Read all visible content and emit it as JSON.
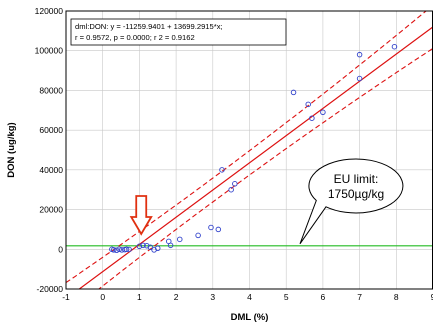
{
  "chart_data": {
    "type": "scatter",
    "xlabel": "DML (%)",
    "ylabel": "DON (ug/kg)",
    "xlim": [
      -1,
      9
    ],
    "ylim": [
      -20000,
      120000
    ],
    "x_ticks": [
      -1,
      0,
      1,
      2,
      3,
      4,
      5,
      6,
      7,
      8,
      9
    ],
    "y_ticks": [
      -20000,
      0,
      20000,
      40000,
      60000,
      80000,
      100000,
      120000
    ],
    "grid": true,
    "points": [
      {
        "x": 0.25,
        "y": 0
      },
      {
        "x": 0.3,
        "y": -300
      },
      {
        "x": 0.38,
        "y": -500
      },
      {
        "x": 0.45,
        "y": 0
      },
      {
        "x": 0.52,
        "y": -300
      },
      {
        "x": 0.6,
        "y": -200
      },
      {
        "x": 0.65,
        "y": 0
      },
      {
        "x": 0.72,
        "y": -100
      },
      {
        "x": 1.0,
        "y": 1500
      },
      {
        "x": 1.1,
        "y": 2000
      },
      {
        "x": 1.2,
        "y": 1800
      },
      {
        "x": 1.3,
        "y": 1000
      },
      {
        "x": 1.4,
        "y": -300
      },
      {
        "x": 1.5,
        "y": 500
      },
      {
        "x": 1.85,
        "y": 2000
      },
      {
        "x": 1.8,
        "y": 4000
      },
      {
        "x": 2.1,
        "y": 5000
      },
      {
        "x": 2.6,
        "y": 7000
      },
      {
        "x": 2.95,
        "y": 11000
      },
      {
        "x": 3.15,
        "y": 10000
      },
      {
        "x": 3.25,
        "y": 40000
      },
      {
        "x": 3.5,
        "y": 30000
      },
      {
        "x": 3.6,
        "y": 33000
      },
      {
        "x": 5.2,
        "y": 79000
      },
      {
        "x": 5.6,
        "y": 73000
      },
      {
        "x": 5.7,
        "y": 66000
      },
      {
        "x": 6.0,
        "y": 69000
      },
      {
        "x": 7.0,
        "y": 86000
      },
      {
        "x": 7.0,
        "y": 98000
      },
      {
        "x": 7.95,
        "y": 102000
      }
    ],
    "regression": {
      "intercept": -11259.9401,
      "slope": 13699.2915,
      "ci_offset": 6000,
      "equation_lines": [
        "dml:DON:  y = -11259.9401 + 13699.2915*x;",
        "r = 0.9572, p = 0.0000; r  2 = 0.9162"
      ]
    },
    "eu_limit": {
      "value": 1750,
      "label_lines": [
        "EU limit:",
        "1750µg/kg"
      ]
    },
    "colors": {
      "fit_line": "#dd1111",
      "limit_line": "#22bb22",
      "points": "#3344cc",
      "arrow": "#e03010",
      "grid": "#c8c8c8"
    }
  }
}
